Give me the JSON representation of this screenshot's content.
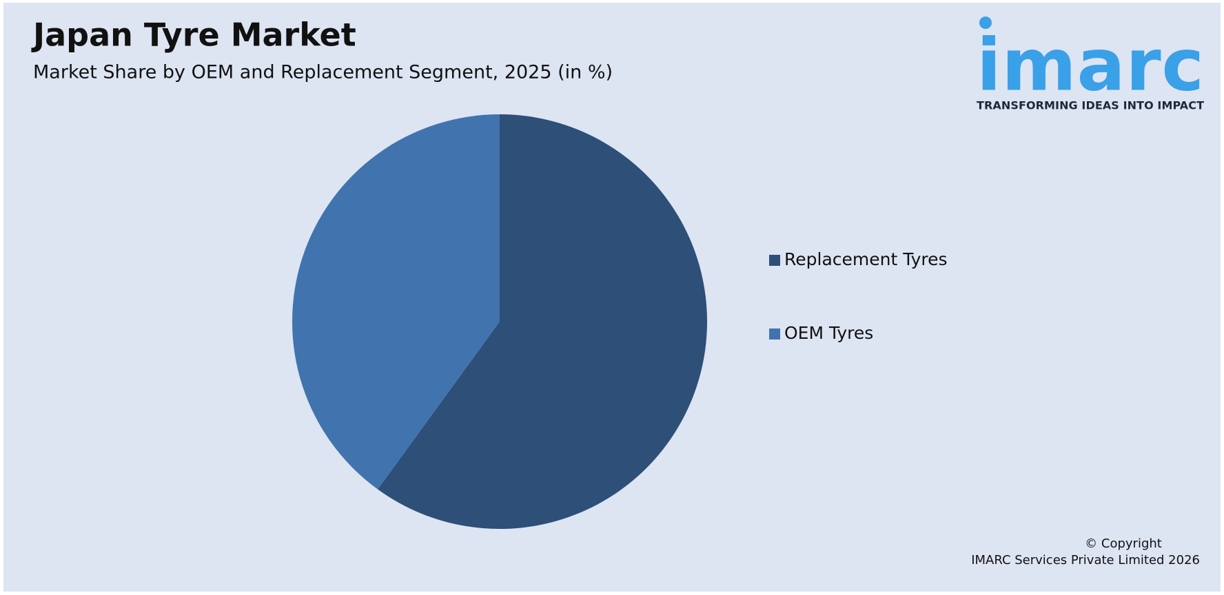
{
  "chart_data": {
    "type": "pie",
    "title": "Japan Tyre Market",
    "subtitle": "Market Share by OEM and Replacement Segment, 2025 (in %)",
    "categories": [
      "Replacement Tyres",
      "OEM Tyres"
    ],
    "values": [
      60,
      40
    ],
    "colors": [
      "#2d4f78",
      "#4173ae"
    ],
    "legend": "right"
  },
  "logo": {
    "name": "imarc",
    "tagline": "TRANSFORMING IDEAS INTO IMPACT"
  },
  "footer": {
    "copyright": "© Copyright",
    "company": "IMARC Services Private Limited 2026"
  }
}
